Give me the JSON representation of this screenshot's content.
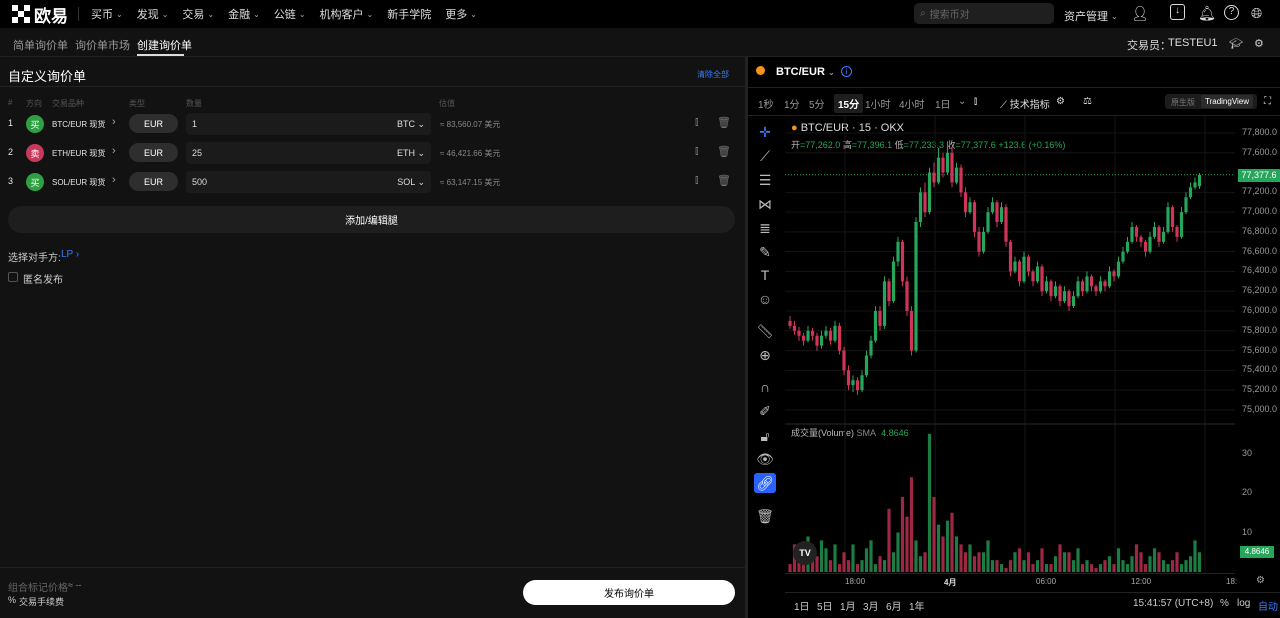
{
  "topnav": {
    "brand": "欧易",
    "items": [
      {
        "label": "买币",
        "dropdown": true
      },
      {
        "label": "发现",
        "dropdown": true
      },
      {
        "label": "交易",
        "dropdown": true
      },
      {
        "label": "金融",
        "dropdown": true
      },
      {
        "label": "公链",
        "dropdown": true
      },
      {
        "label": "机构客户",
        "dropdown": true
      },
      {
        "label": "新手学院",
        "dropdown": false
      },
      {
        "label": "更多",
        "dropdown": true
      }
    ],
    "search_placeholder": "搜索币对",
    "assets": "资产管理"
  },
  "subnav": {
    "tabs": [
      "简单询价单",
      "询价单市场",
      "创建询价单"
    ],
    "active": 2,
    "trader_label": "交易员：",
    "trader": "TESTEU1"
  },
  "form": {
    "title": "自定义询价单",
    "clear_all": "清除全部",
    "headers": [
      "#",
      "方向",
      "交易品种",
      "类型",
      "数量",
      "估值"
    ],
    "legs": [
      {
        "n": "1",
        "side": "买",
        "side_color": "#2ea043",
        "instrument": "BTC/EUR 现货",
        "type": "EUR",
        "qty": "1",
        "unit": "BTC",
        "est": "≈ 83,560.07 美元"
      },
      {
        "n": "2",
        "side": "卖",
        "side_color": "#c73a5c",
        "instrument": "ETH/EUR 现货",
        "type": "EUR",
        "qty": "25",
        "unit": "ETH",
        "est": "≈ 46,421.66 美元"
      },
      {
        "n": "3",
        "side": "买",
        "side_color": "#2ea043",
        "instrument": "SOL/EUR 现货",
        "type": "EUR",
        "qty": "500",
        "unit": "SOL",
        "est": "≈ 63,147.15 美元"
      }
    ],
    "add_leg": "添加/编辑腿",
    "counterparty_label": "选择对手方:",
    "counterparty": "LP",
    "anonymous": "匿名发布",
    "anonymous_checked": false,
    "mark_price_label": "组合标记价格",
    "mark_price": "≈ --",
    "fee_label": "交易手续费",
    "submit": "发布询价单"
  },
  "chart": {
    "pair": "BTC/EUR",
    "timeframes": [
      "1秒",
      "1分",
      "5分",
      "15分",
      "1小时",
      "4小时",
      "1日"
    ],
    "active_tf": "15分",
    "indicators": "技术指标",
    "views": [
      "原生版",
      "TradingView"
    ],
    "active_view": "TradingView",
    "legend_title": "BTC/EUR · 15 · OKX",
    "ohlc": {
      "o_label": "开",
      "o": "=77,262.0",
      "h_label": "高",
      "h": "=77,396.1",
      "l_label": "低",
      "l": "=77,233.3",
      "c_label": "收",
      "c": "=77,377.6",
      "chg": "+123.6 (+0.16%)"
    },
    "volume_legend": "成交量(Volume)",
    "sma_label": "SMA",
    "sma": "4.8646",
    "last_price": "77,377.6",
    "last_volume": "4.8646",
    "time_ticks": [
      "18:00",
      "4月",
      "06:00",
      "12:00",
      "18:"
    ],
    "ranges": [
      "1日",
      "5日",
      "1月",
      "3月",
      "6月",
      "1年"
    ],
    "clock": "15:41:57 (UTC+8)",
    "pct": "%",
    "log": "log",
    "auto": "自动"
  },
  "chart_data": {
    "type": "candlestick",
    "ylim": [
      75000,
      77800
    ],
    "y_ticks": [
      "77,800.0",
      "77,600.0",
      "77,200.0",
      "77,000.0",
      "76,800.0",
      "76,600.0",
      "76,400.0",
      "76,200.0",
      "76,000.0",
      "75,800.0",
      "75,600.0",
      "75,400.0",
      "75,200.0",
      "75,000.0"
    ],
    "volume_ticks": [
      "30",
      "20",
      "10"
    ],
    "volume_ylim": [
      0,
      37
    ],
    "colors": {
      "up": "#26a65b",
      "down": "#d1345b"
    },
    "candles": [
      [
        75900,
        75950,
        75820,
        75850
      ],
      [
        75850,
        75900,
        75760,
        75800
      ],
      [
        75800,
        75840,
        75700,
        75750
      ],
      [
        75750,
        75780,
        75650,
        75700
      ],
      [
        75700,
        75850,
        75680,
        75800
      ],
      [
        75800,
        75830,
        75700,
        75750
      ],
      [
        75750,
        75780,
        75600,
        75650
      ],
      [
        75650,
        75800,
        75620,
        75750
      ],
      [
        75750,
        75850,
        75720,
        75800
      ],
      [
        75800,
        75830,
        75660,
        75700
      ],
      [
        75700,
        75900,
        75680,
        75850
      ],
      [
        75850,
        75880,
        75560,
        75600
      ],
      [
        75600,
        75640,
        75350,
        75400
      ],
      [
        75400,
        75450,
        75200,
        75250
      ],
      [
        75250,
        75350,
        75180,
        75300
      ],
      [
        75300,
        75330,
        75150,
        75200
      ],
      [
        75200,
        75400,
        75180,
        75350
      ],
      [
        75350,
        75600,
        75330,
        75550
      ],
      [
        75550,
        75750,
        75520,
        75700
      ],
      [
        75700,
        76050,
        75680,
        76000
      ],
      [
        76000,
        76050,
        75800,
        75850
      ],
      [
        75850,
        76350,
        75820,
        76300
      ],
      [
        76300,
        76330,
        76050,
        76100
      ],
      [
        76100,
        76550,
        76080,
        76500
      ],
      [
        76500,
        76750,
        76450,
        76700
      ],
      [
        76700,
        76720,
        76250,
        76300
      ],
      [
        76300,
        76350,
        75950,
        76000
      ],
      [
        76000,
        76050,
        75550,
        75600
      ],
      [
        75600,
        76950,
        75580,
        76900
      ],
      [
        76900,
        77250,
        76850,
        77200
      ],
      [
        77200,
        77300,
        76950,
        77000
      ],
      [
        77000,
        77450,
        76980,
        77400
      ],
      [
        77400,
        77500,
        77250,
        77300
      ],
      [
        77300,
        77650,
        77280,
        77550
      ],
      [
        77550,
        77600,
        77350,
        77400
      ],
      [
        77400,
        77700,
        77380,
        77600
      ],
      [
        77600,
        77650,
        77250,
        77300
      ],
      [
        77300,
        77500,
        77280,
        77450
      ],
      [
        77450,
        77480,
        77150,
        77200
      ],
      [
        77200,
        77250,
        76950,
        77000
      ],
      [
        77000,
        77150,
        76980,
        77100
      ],
      [
        77100,
        77120,
        76750,
        76800
      ],
      [
        76800,
        76850,
        76550,
        76600
      ],
      [
        76600,
        76850,
        76580,
        76800
      ],
      [
        76800,
        77050,
        76780,
        77000
      ],
      [
        77000,
        77150,
        76980,
        77100
      ],
      [
        77100,
        77120,
        76850,
        76900
      ],
      [
        76900,
        77100,
        76880,
        77050
      ],
      [
        77050,
        77080,
        76650,
        76700
      ],
      [
        76700,
        76720,
        76350,
        76400
      ],
      [
        76400,
        76550,
        76380,
        76500
      ],
      [
        76500,
        76520,
        76250,
        76300
      ],
      [
        76300,
        76600,
        76280,
        76550
      ],
      [
        76550,
        76570,
        76350,
        76400
      ],
      [
        76400,
        76420,
        76250,
        76300
      ],
      [
        76300,
        76500,
        76280,
        76450
      ],
      [
        76450,
        76470,
        76150,
        76200
      ],
      [
        76200,
        76350,
        76180,
        76300
      ],
      [
        76300,
        76320,
        76100,
        76150
      ],
      [
        76150,
        76300,
        76130,
        76250
      ],
      [
        76250,
        76270,
        76050,
        76100
      ],
      [
        76100,
        76250,
        76080,
        76200
      ],
      [
        76200,
        76220,
        76000,
        76050
      ],
      [
        76050,
        76200,
        76030,
        76150
      ],
      [
        76150,
        76350,
        76130,
        76300
      ],
      [
        76300,
        76320,
        76150,
        76200
      ],
      [
        76200,
        76400,
        76180,
        76350
      ],
      [
        76350,
        76370,
        76200,
        76250
      ],
      [
        76250,
        76270,
        76150,
        76200
      ],
      [
        76200,
        76350,
        76180,
        76300
      ],
      [
        76300,
        76320,
        76200,
        76250
      ],
      [
        76250,
        76450,
        76230,
        76400
      ],
      [
        76400,
        76420,
        76300,
        76350
      ],
      [
        76350,
        76550,
        76330,
        76500
      ],
      [
        76500,
        76650,
        76480,
        76600
      ],
      [
        76600,
        76750,
        76580,
        76700
      ],
      [
        76700,
        76900,
        76680,
        76850
      ],
      [
        76850,
        76870,
        76700,
        76750
      ],
      [
        76750,
        76770,
        76650,
        76700
      ],
      [
        76700,
        76720,
        76550,
        76600
      ],
      [
        76600,
        76800,
        76580,
        76750
      ],
      [
        76750,
        76900,
        76730,
        76850
      ],
      [
        76850,
        76870,
        76650,
        76700
      ],
      [
        76700,
        76850,
        76680,
        76800
      ],
      [
        76800,
        77100,
        76780,
        77050
      ],
      [
        77050,
        77070,
        76800,
        76850
      ],
      [
        76850,
        76870,
        76700,
        76750
      ],
      [
        76750,
        77050,
        76730,
        77000
      ],
      [
        77000,
        77200,
        76980,
        77150
      ],
      [
        77150,
        77300,
        77130,
        77250
      ],
      [
        77250,
        77350,
        77230,
        77300
      ],
      [
        77262,
        77396.1,
        77233.3,
        77377.6
      ]
    ],
    "volume": [
      2,
      7,
      7,
      3,
      9,
      7,
      4,
      8,
      6,
      3,
      7,
      2,
      5,
      3,
      7,
      2,
      3,
      6,
      8,
      2,
      4,
      3,
      16,
      5,
      10,
      19,
      14,
      24,
      8,
      4,
      5,
      35,
      19,
      12,
      9,
      13,
      15,
      9,
      7,
      5,
      7,
      4,
      5,
      5,
      8,
      3,
      3,
      2,
      1,
      3,
      5,
      6,
      3,
      5,
      2,
      3,
      6,
      2,
      2,
      4,
      7,
      5,
      5,
      3,
      6,
      2,
      3,
      2,
      1,
      2,
      3,
      4,
      2,
      6,
      3,
      2,
      4,
      7,
      5,
      2,
      4,
      6,
      5,
      3,
      2,
      3,
      5,
      2,
      3,
      4,
      8,
      5
    ]
  }
}
